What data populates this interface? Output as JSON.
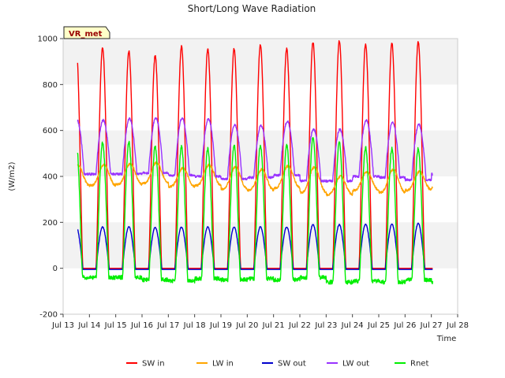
{
  "chart_data": {
    "type": "line",
    "title": "Short/Long Wave Radiation",
    "xlabel": "Time",
    "ylabel": "(W/m2)",
    "ylim": [
      -200,
      1000
    ],
    "yticks": [
      -200,
      0,
      200,
      400,
      600,
      800,
      1000
    ],
    "xlim": [
      "2024-07-13",
      "2024-07-28"
    ],
    "xtick_labels": [
      "Jul 13",
      "Jul 14",
      "Jul 15",
      "Jul 16",
      "Jul 17",
      "Jul 18",
      "Jul 19",
      "Jul 20",
      "Jul 21",
      "Jul 22",
      "Jul 23",
      "Jul 24",
      "Jul 25",
      "Jul 26",
      "Jul 27",
      "Jul 28"
    ],
    "grid": "horizontal bands",
    "legend_position": "bottom",
    "badge": "VR_met",
    "days": [
      "Jul 14",
      "Jul 15",
      "Jul 16",
      "Jul 17",
      "Jul 18",
      "Jul 19",
      "Jul 20",
      "Jul 21",
      "Jul 22",
      "Jul 23",
      "Jul 24",
      "Jul 25",
      "Jul 26",
      "Jul 27"
    ],
    "series": [
      {
        "name": "SW in",
        "color": "#ff0000",
        "daily_peak": [
          960,
          945,
          925,
          965,
          955,
          955,
          975,
          955,
          985,
          990,
          975,
          980,
          985,
          965
        ],
        "night_value": 0
      },
      {
        "name": "LW in",
        "color": "#ffa500",
        "daily_peak": [
          450,
          455,
          460,
          435,
          450,
          440,
          430,
          445,
          440,
          400,
          420,
          430,
          420,
          420
        ],
        "daily_min": [
          360,
          365,
          370,
          355,
          360,
          345,
          340,
          350,
          330,
          320,
          340,
          330,
          340,
          350
        ]
      },
      {
        "name": "SW out",
        "color": "#0000cc",
        "daily_peak": [
          180,
          180,
          178,
          180,
          180,
          180,
          180,
          180,
          190,
          190,
          192,
          192,
          195,
          192
        ],
        "night_value": -5
      },
      {
        "name": "LW out",
        "color": "#9933ff",
        "daily_peak": [
          645,
          650,
          655,
          655,
          650,
          625,
          620,
          640,
          605,
          605,
          645,
          635,
          625,
          635
        ],
        "daily_min": [
          410,
          410,
          415,
          405,
          400,
          390,
          395,
          405,
          380,
          380,
          400,
          395,
          385,
          410
        ]
      },
      {
        "name": "Rnet",
        "color": "#00ee00",
        "daily_peak": [
          545,
          550,
          530,
          530,
          520,
          535,
          535,
          535,
          570,
          550,
          525,
          520,
          520,
          510
        ],
        "daily_min": [
          -40,
          -40,
          -50,
          -55,
          -45,
          -50,
          -45,
          -50,
          -40,
          -60,
          -55,
          -60,
          -50,
          -60
        ]
      }
    ]
  }
}
